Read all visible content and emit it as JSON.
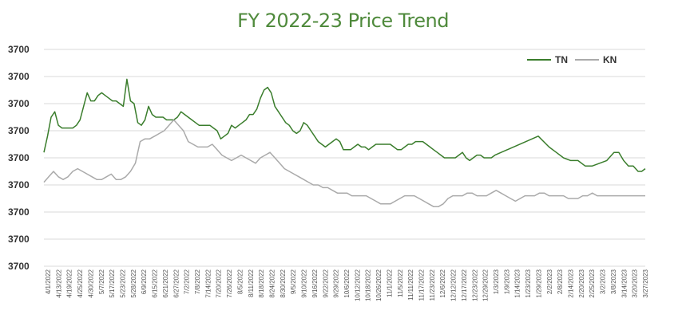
{
  "chart_data": {
    "type": "line",
    "title": "FY 2022-23 Price Trend",
    "xlabel": "",
    "ylabel": "",
    "y_tick_labels": [
      "3700",
      "3700",
      "3700",
      "3700",
      "3700",
      "3700",
      "3700",
      "3700",
      "3700"
    ],
    "x_tick_labels": [
      "4/1/2022",
      "4/13/2022",
      "4/19/2022",
      "4/25/2022",
      "4/30/2022",
      "5/7/2022",
      "5/17/2022",
      "5/23/2022",
      "5/28/2022",
      "6/9/2022",
      "6/15/2022",
      "6/21/2022",
      "6/27/2022",
      "7/2/2022",
      "7/8/2022",
      "7/14/2022",
      "7/20/2022",
      "7/26/2022",
      "8/5/2022",
      "8/11/2022",
      "8/18/2022",
      "8/24/2022",
      "8/30/2022",
      "9/5/2022",
      "9/10/2022",
      "9/16/2022",
      "9/22/2022",
      "9/29/2022",
      "10/6/2022",
      "10/12/2022",
      "10/18/2022",
      "10/26/2022",
      "11/1/2022",
      "11/5/2022",
      "11/11/2022",
      "11/17/2022",
      "11/23/2022",
      "12/6/2022",
      "12/12/2022",
      "12/17/2022",
      "12/23/2022",
      "12/29/2022",
      "1/3/2023",
      "1/9/2023",
      "1/14/2023",
      "1/23/2023",
      "1/29/2023",
      "2/2/2023",
      "2/8/2023",
      "2/14/2023",
      "2/20/2023",
      "2/25/2023",
      "3/2/2023",
      "3/8/2023",
      "3/14/2023",
      "3/20/2023",
      "3/27/2023"
    ],
    "legend_position": "top-right",
    "grid": true,
    "series": [
      {
        "name": "TN",
        "color": "#3a7d2c",
        "values": [
          4.2,
          4.8,
          5.5,
          5.7,
          5.2,
          5.1,
          5.1,
          5.1,
          5.1,
          5.2,
          5.4,
          5.9,
          6.4,
          6.1,
          6.1,
          6.3,
          6.4,
          6.3,
          6.2,
          6.1,
          6.1,
          6.0,
          5.9,
          6.9,
          6.1,
          6.0,
          5.3,
          5.2,
          5.4,
          5.9,
          5.6,
          5.5,
          5.5,
          5.5,
          5.4,
          5.4,
          5.4,
          5.5,
          5.7,
          5.6,
          5.5,
          5.4,
          5.3,
          5.2,
          5.2,
          5.2,
          5.2,
          5.1,
          5.0,
          4.7,
          4.8,
          4.9,
          5.2,
          5.1,
          5.2,
          5.3,
          5.4,
          5.6,
          5.6,
          5.8,
          6.2,
          6.5,
          6.6,
          6.4,
          5.9,
          5.7,
          5.5,
          5.3,
          5.2,
          5.0,
          4.9,
          5.0,
          5.3,
          5.2,
          5.0,
          4.8,
          4.6,
          4.5,
          4.4,
          4.5,
          4.6,
          4.7,
          4.6,
          4.3,
          4.3,
          4.3,
          4.4,
          4.5,
          4.4,
          4.4,
          4.3,
          4.4,
          4.5,
          4.5,
          4.5,
          4.5,
          4.5,
          4.4,
          4.3,
          4.3,
          4.4,
          4.5,
          4.5,
          4.6,
          4.6,
          4.6,
          4.5,
          4.4,
          4.3,
          4.2,
          4.1,
          4.0,
          4.0,
          4.0,
          4.0,
          4.1,
          4.2,
          4.0,
          3.9,
          4.0,
          4.1,
          4.1,
          4.0,
          4.0,
          4.0,
          4.1,
          4.8,
          4.4,
          4.2,
          4.0,
          3.9,
          3.9,
          3.7,
          3.7,
          3.8,
          3.9,
          4.2,
          4.2,
          3.9,
          3.7,
          3.7,
          3.5,
          3.5,
          3.6
        ],
        "x_frac": [
          0.0,
          0.006,
          0.012,
          0.018,
          0.024,
          0.03,
          0.036,
          0.042,
          0.048,
          0.054,
          0.06,
          0.066,
          0.072,
          0.078,
          0.084,
          0.09,
          0.096,
          0.102,
          0.108,
          0.114,
          0.12,
          0.126,
          0.132,
          0.138,
          0.144,
          0.15,
          0.156,
          0.162,
          0.168,
          0.174,
          0.18,
          0.186,
          0.192,
          0.198,
          0.204,
          0.21,
          0.216,
          0.222,
          0.228,
          0.234,
          0.24,
          0.246,
          0.252,
          0.258,
          0.264,
          0.27,
          0.276,
          0.282,
          0.288,
          0.294,
          0.3,
          0.306,
          0.312,
          0.318,
          0.324,
          0.33,
          0.336,
          0.342,
          0.348,
          0.354,
          0.36,
          0.366,
          0.372,
          0.378,
          0.384,
          0.39,
          0.396,
          0.402,
          0.408,
          0.414,
          0.42,
          0.426,
          0.432,
          0.438,
          0.444,
          0.45,
          0.456,
          0.462,
          0.468,
          0.474,
          0.48,
          0.486,
          0.492,
          0.498,
          0.504,
          0.51,
          0.516,
          0.522,
          0.528,
          0.534,
          0.54,
          0.546,
          0.552,
          0.558,
          0.564,
          0.57,
          0.576,
          0.582,
          0.588,
          0.594,
          0.6,
          0.606,
          0.612,
          0.618,
          0.624,
          0.63,
          0.636,
          0.642,
          0.648,
          0.654,
          0.66,
          0.666,
          0.672,
          0.678,
          0.684,
          0.69,
          0.696,
          0.702,
          0.708,
          0.714,
          0.72,
          0.726,
          0.732,
          0.738,
          0.744,
          0.75,
          0.822,
          0.84,
          0.852,
          0.864,
          0.876,
          0.888,
          0.9,
          0.912,
          0.924,
          0.936,
          0.948,
          0.956,
          0.964,
          0.972,
          0.98,
          0.988,
          0.994,
          1.0
        ]
      },
      {
        "name": "KN",
        "color": "#aaaaaa",
        "values": [
          3.1,
          3.3,
          3.5,
          3.3,
          3.2,
          3.3,
          3.5,
          3.6,
          3.5,
          3.4,
          3.3,
          3.2,
          3.2,
          3.3,
          3.4,
          3.2,
          3.2,
          3.3,
          3.5,
          3.8,
          4.6,
          4.7,
          4.7,
          4.8,
          4.9,
          5.0,
          5.2,
          5.4,
          5.2,
          5.0,
          4.6,
          4.5,
          4.4,
          4.4,
          4.4,
          4.5,
          4.3,
          4.1,
          4.0,
          3.9,
          4.0,
          4.1,
          4.0,
          3.9,
          3.8,
          4.0,
          4.1,
          4.2,
          4.0,
          3.8,
          3.6,
          3.5,
          3.4,
          3.3,
          3.2,
          3.1,
          3.0,
          3.0,
          2.9,
          2.9,
          2.8,
          2.7,
          2.7,
          2.7,
          2.6,
          2.6,
          2.6,
          2.6,
          2.5,
          2.4,
          2.3,
          2.3,
          2.3,
          2.4,
          2.5,
          2.6,
          2.6,
          2.6,
          2.5,
          2.4,
          2.3,
          2.2,
          2.2,
          2.3,
          2.5,
          2.6,
          2.6,
          2.6,
          2.7,
          2.7,
          2.6,
          2.6,
          2.6,
          2.7,
          2.8,
          2.7,
          2.6,
          2.5,
          2.4,
          2.5,
          2.6,
          2.6,
          2.6,
          2.7,
          2.7,
          2.6,
          2.6,
          2.6,
          2.6,
          2.5,
          2.5,
          2.5,
          2.6,
          2.6,
          2.7,
          2.6,
          2.6,
          2.6,
          2.6,
          2.6,
          2.6,
          2.6,
          2.6,
          2.6,
          2.6
        ],
        "x_frac": [
          0.0,
          0.008,
          0.016,
          0.024,
          0.032,
          0.04,
          0.048,
          0.056,
          0.064,
          0.072,
          0.08,
          0.088,
          0.096,
          0.104,
          0.112,
          0.12,
          0.128,
          0.136,
          0.144,
          0.152,
          0.16,
          0.168,
          0.176,
          0.184,
          0.192,
          0.2,
          0.208,
          0.216,
          0.224,
          0.232,
          0.24,
          0.248,
          0.256,
          0.264,
          0.272,
          0.28,
          0.288,
          0.296,
          0.304,
          0.312,
          0.32,
          0.328,
          0.336,
          0.344,
          0.352,
          0.36,
          0.368,
          0.376,
          0.384,
          0.392,
          0.4,
          0.408,
          0.416,
          0.424,
          0.432,
          0.44,
          0.448,
          0.456,
          0.464,
          0.472,
          0.48,
          0.488,
          0.496,
          0.504,
          0.512,
          0.52,
          0.528,
          0.536,
          0.544,
          0.552,
          0.56,
          0.568,
          0.576,
          0.584,
          0.592,
          0.6,
          0.608,
          0.616,
          0.624,
          0.632,
          0.64,
          0.648,
          0.656,
          0.664,
          0.672,
          0.68,
          0.688,
          0.696,
          0.704,
          0.712,
          0.72,
          0.728,
          0.736,
          0.744,
          0.752,
          0.76,
          0.768,
          0.776,
          0.784,
          0.792,
          0.8,
          0.808,
          0.816,
          0.824,
          0.832,
          0.84,
          0.848,
          0.856,
          0.864,
          0.872,
          0.88,
          0.888,
          0.896,
          0.904,
          0.912,
          0.92,
          0.928,
          0.936,
          0.944,
          0.952,
          0.96,
          0.968,
          0.976,
          0.984,
          1.0
        ]
      }
    ]
  }
}
